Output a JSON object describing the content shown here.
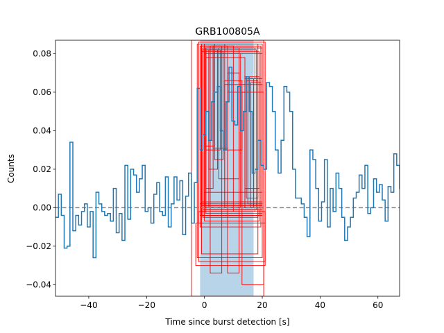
{
  "chart_data": {
    "type": "line",
    "title": "GRB100805A",
    "xlabel": "Time since burst detection [s]",
    "ylabel": "Counts",
    "xlim": [
      -51.5,
      67.5
    ],
    "ylim": [
      -0.046,
      0.087
    ],
    "xticks": [
      -40,
      -20,
      0,
      20,
      40,
      60
    ],
    "xtick_labels": [
      "−40",
      "−20",
      "0",
      "20",
      "40",
      "60"
    ],
    "yticks": [
      -0.04,
      -0.02,
      0.0,
      0.02,
      0.04,
      0.06,
      0.08
    ],
    "ytick_labels": [
      "−0.04",
      "−0.02",
      "0.00",
      "0.02",
      "0.04",
      "0.06",
      "0.08"
    ],
    "grid": false,
    "series": [
      {
        "style": "step",
        "color": "#1f77b4",
        "bin_width": 1.0,
        "x_start": -51.5,
        "values": [
          -0.005,
          0.007,
          -0.004,
          -0.021,
          -0.02,
          0.034,
          -0.012,
          -0.004,
          -0.009,
          -0.002,
          0.002,
          -0.01,
          -0.002,
          -0.026,
          0.008,
          0.002,
          -0.002,
          -0.004,
          -0.003,
          -0.007,
          0.01,
          -0.013,
          -0.003,
          -0.017,
          0.022,
          -0.006,
          0.02,
          0.017,
          0.008,
          0.015,
          0.022,
          -0.002,
          0.0,
          -0.008,
          0.007,
          0.013,
          -0.002,
          -0.004,
          0.016,
          -0.01,
          0.002,
          0.016,
          0.004,
          0.014,
          -0.014,
          0.006,
          0.018,
          -0.008,
          0.013,
          0.062,
          0.03,
          0.038,
          0.05,
          0.035,
          0.055,
          0.06,
          0.063,
          0.04,
          0.03,
          0.055,
          0.073,
          0.045,
          0.043,
          0.063,
          0.04,
          0.05,
          0.068,
          0.05,
          0.018,
          0.02,
          0.035,
          0.022,
          0.02,
          0.065,
          0.063,
          0.05,
          0.03,
          0.018,
          0.035,
          0.063,
          0.06,
          0.05,
          0.02,
          0.005,
          0.005,
          0.002,
          -0.005,
          -0.015,
          0.03,
          0.025,
          0.01,
          -0.007,
          0.003,
          0.025,
          -0.01,
          0.01,
          -0.002,
          0.018,
          0.01,
          -0.005,
          -0.017,
          -0.01,
          -0.005,
          0.005,
          0.008,
          0.017,
          0.01,
          0.022,
          -0.003,
          0.0,
          0.015,
          0.008,
          0.012,
          0.004,
          -0.007,
          0.011,
          0.008,
          0.028,
          0.022,
          0.01,
          0.02,
          0.01,
          0.018
        ]
      }
    ],
    "reference_lines": [
      {
        "y": 0.0,
        "style": "dashed",
        "color": "#808080"
      }
    ],
    "shaded_region": {
      "x": [
        -1.5,
        17.0
      ],
      "color": "#b8d4e8"
    },
    "red_boxes": [
      {
        "x": [
          -4.5,
          20.5
        ],
        "y": [
          -0.046,
          0.087
        ]
      },
      {
        "x": [
          -2.0,
          21.0
        ],
        "y": [
          -0.028,
          0.086
        ]
      },
      {
        "x": [
          -2.5,
          20.0
        ],
        "y": [
          -0.026,
          0.085
        ]
      },
      {
        "x": [
          -1.0,
          18.5
        ],
        "y": [
          -0.024,
          0.085
        ]
      },
      {
        "x": [
          -1.5,
          19.5
        ],
        "y": [
          -0.01,
          0.084
        ]
      },
      {
        "x": [
          0.0,
          7.0
        ],
        "y": [
          0.0,
          0.085
        ]
      },
      {
        "x": [
          -1.0,
          10.0
        ],
        "y": [
          -0.002,
          0.084
        ]
      },
      {
        "x": [
          0.5,
          20.0
        ],
        "y": [
          -0.003,
          0.083
        ]
      },
      {
        "x": [
          -0.5,
          18.0
        ],
        "y": [
          -0.001,
          0.082
        ]
      },
      {
        "x": [
          -1.0,
          19.0
        ],
        "y": [
          -0.004,
          0.081
        ]
      },
      {
        "x": [
          0.0,
          20.0
        ],
        "y": [
          -0.001,
          0.08
        ]
      },
      {
        "x": [
          0.5,
          14.0
        ],
        "y": [
          0.001,
          0.078
        ]
      },
      {
        "x": [
          1.5,
          12.5
        ],
        "y": [
          0.0,
          0.08
        ]
      },
      {
        "x": [
          -0.5,
          17.5
        ],
        "y": [
          -0.002,
          0.083
        ]
      },
      {
        "x": [
          0.0,
          3.5
        ],
        "y": [
          0.032,
          0.085
        ]
      },
      {
        "x": [
          0.5,
          5.5
        ],
        "y": [
          0.03,
          0.082
        ]
      },
      {
        "x": [
          3.0,
          8.0
        ],
        "y": [
          0.031,
          0.084
        ]
      },
      {
        "x": [
          7.0,
          13.0
        ],
        "y": [
          0.03,
          0.066
        ]
      },
      {
        "x": [
          8.0,
          12.0
        ],
        "y": [
          -0.034,
          0.07
        ]
      },
      {
        "x": [
          14.0,
          19.0
        ],
        "y": [
          0.01,
          0.068
        ]
      },
      {
        "x": [
          15.0,
          20.0
        ],
        "y": [
          0.002,
          0.067
        ]
      },
      {
        "x": [
          14.5,
          18.5
        ],
        "y": [
          0.005,
          0.066
        ]
      },
      {
        "x": [
          16.0,
          19.5
        ],
        "y": [
          0.0,
          0.065
        ]
      },
      {
        "x": [
          13.0,
          20.5
        ],
        "y": [
          -0.04,
          0.06
        ]
      },
      {
        "x": [
          7.0,
          20.0
        ],
        "y": [
          0.003,
          0.064
        ]
      },
      {
        "x": [
          8.0,
          14.0
        ],
        "y": [
          0.0,
          0.06
        ]
      },
      {
        "x": [
          0.0,
          20.0
        ],
        "y": [
          0.001,
          0.008
        ]
      },
      {
        "x": [
          -1.0,
          19.5
        ],
        "y": [
          0.001,
          0.003
        ]
      },
      {
        "x": [
          -1.5,
          20.0
        ],
        "y": [
          -0.004,
          0.002
        ]
      },
      {
        "x": [
          -0.5,
          18.5
        ],
        "y": [
          -0.005,
          0.0
        ]
      },
      {
        "x": [
          0.0,
          19.0
        ],
        "y": [
          -0.007,
          -0.001
        ]
      },
      {
        "x": [
          -2.0,
          21.0
        ],
        "y": [
          -0.008,
          -0.002
        ]
      },
      {
        "x": [
          -3.0,
          21.0
        ],
        "y": [
          -0.03,
          -0.008
        ]
      },
      {
        "x": [
          0.5,
          3.0
        ],
        "y": [
          0.01,
          0.083
        ]
      },
      {
        "x": [
          1.5,
          4.5
        ],
        "y": [
          0.02,
          0.082
        ]
      },
      {
        "x": [
          3.5,
          6.5
        ],
        "y": [
          0.025,
          0.081
        ]
      },
      {
        "x": [
          5.0,
          12.0
        ],
        "y": [
          0.015,
          0.083
        ]
      },
      {
        "x": [
          14.0,
          17.0
        ],
        "y": [
          0.0,
          0.067
        ]
      },
      {
        "x": [
          2.0,
          6.0
        ],
        "y": [
          -0.034,
          0.084
        ]
      }
    ]
  }
}
